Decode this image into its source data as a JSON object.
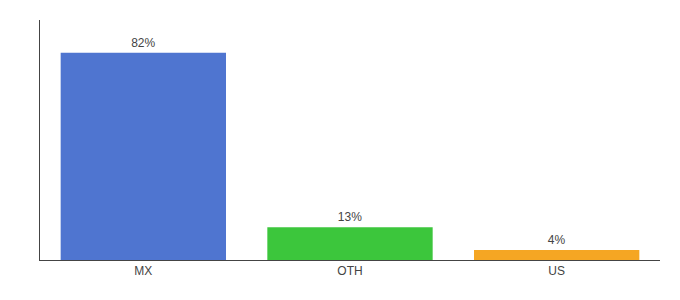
{
  "chart_data": {
    "type": "bar",
    "categories": [
      "MX",
      "OTH",
      "US"
    ],
    "values": [
      82,
      13,
      4
    ],
    "value_labels": [
      "82%",
      "13%",
      "4%"
    ],
    "colors": [
      "#4f75d0",
      "#3cc63c",
      "#f5a623"
    ],
    "data_labels": true,
    "ylim": [
      0,
      95
    ],
    "grid": false,
    "tick_labels": "x"
  }
}
